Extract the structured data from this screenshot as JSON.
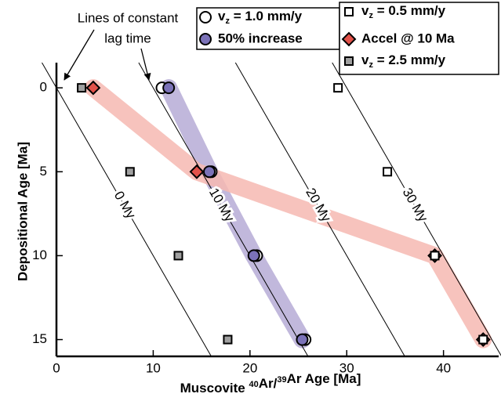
{
  "chart_data": {
    "type": "scatter",
    "xlabel": "Muscovite 40Ar/39Ar Age [Ma]",
    "ylabel": "Depositional Age [Ma]",
    "annotation": [
      "Lines of constant",
      "lag time"
    ],
    "xlim": [
      0,
      45.7
    ],
    "ylim": [
      16,
      -1.5
    ],
    "xticks": [
      0,
      10,
      20,
      30,
      40
    ],
    "yticks": [
      0,
      5,
      10,
      15
    ],
    "lag_lines": [
      0,
      10,
      20,
      30
    ],
    "lag_line_labels": [
      "0 My",
      "10 My",
      "20 My",
      "30 My"
    ],
    "series": [
      {
        "name": "vz = 1.0 mm/y",
        "marker": "circle",
        "color": "#ffffff",
        "x": [
          10.9,
          16.0,
          20.7,
          25.7
        ],
        "values": [
          0,
          5,
          10,
          15
        ]
      },
      {
        "name": "50% increase",
        "marker": "circle",
        "color": "#7b72b8",
        "band_color": "#b6acd6",
        "x": [
          11.6,
          15.8,
          20.4,
          25.4
        ],
        "values": [
          0,
          5,
          10,
          15
        ]
      },
      {
        "name": "Accel @ 10 Ma",
        "marker": "diamond",
        "color": "#e2524a",
        "band_color": "#f6b8b2",
        "x": [
          3.8,
          14.5,
          39.1,
          44.1
        ],
        "values": [
          0,
          5,
          10,
          15
        ]
      },
      {
        "name": "vz = 0.5 mm/y",
        "marker": "square",
        "color": "#ffffff",
        "x": [
          29.1,
          34.2,
          39.1,
          44.1
        ],
        "values": [
          0,
          5,
          10,
          15
        ]
      },
      {
        "name": "vz = 2.5 mm/y",
        "marker": "square",
        "color": "#a0a0a0",
        "x": [
          2.6,
          7.6,
          12.6,
          17.7
        ],
        "values": [
          0,
          5,
          10,
          15
        ]
      }
    ]
  }
}
